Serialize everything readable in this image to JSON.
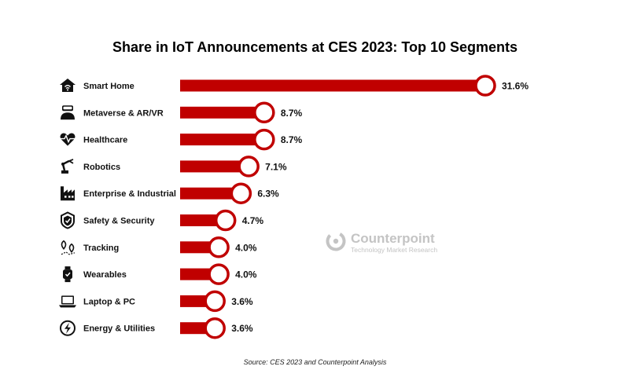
{
  "chart_data": {
    "type": "bar",
    "orientation": "horizontal",
    "title": "Share in IoT Announcements at CES 2023: Top 10 Segments",
    "categories": [
      "Smart Home",
      "Metaverse & AR/VR",
      "Healthcare",
      "Robotics",
      "Enterprise & Industrial",
      "Safety & Security",
      "Tracking",
      "Wearables",
      "Laptop & PC",
      "Energy & Utilities"
    ],
    "values": [
      31.6,
      8.7,
      8.7,
      7.1,
      6.3,
      4.7,
      4.0,
      4.0,
      3.6,
      3.6
    ],
    "value_labels": [
      "31.6%",
      "8.7%",
      "8.7%",
      "7.1%",
      "6.3%",
      "4.7%",
      "4.0%",
      "4.0%",
      "3.6%",
      "3.6%"
    ],
    "icons": [
      "house-wifi-icon",
      "vr-headset-person-icon",
      "heartbeat-icon",
      "robot-arm-icon",
      "factory-icon",
      "shield-check-icon",
      "location-pins-icon",
      "smartwatch-icon",
      "laptop-icon",
      "lightning-icon"
    ],
    "bar_color": "#c00000",
    "xlabel": "",
    "ylabel": "",
    "grid": false,
    "legend": "none"
  },
  "watermark": {
    "name": "Counterpoint",
    "tagline": "Technology Market Research"
  },
  "source": "Source: CES 2023 and Counterpoint Analysis"
}
